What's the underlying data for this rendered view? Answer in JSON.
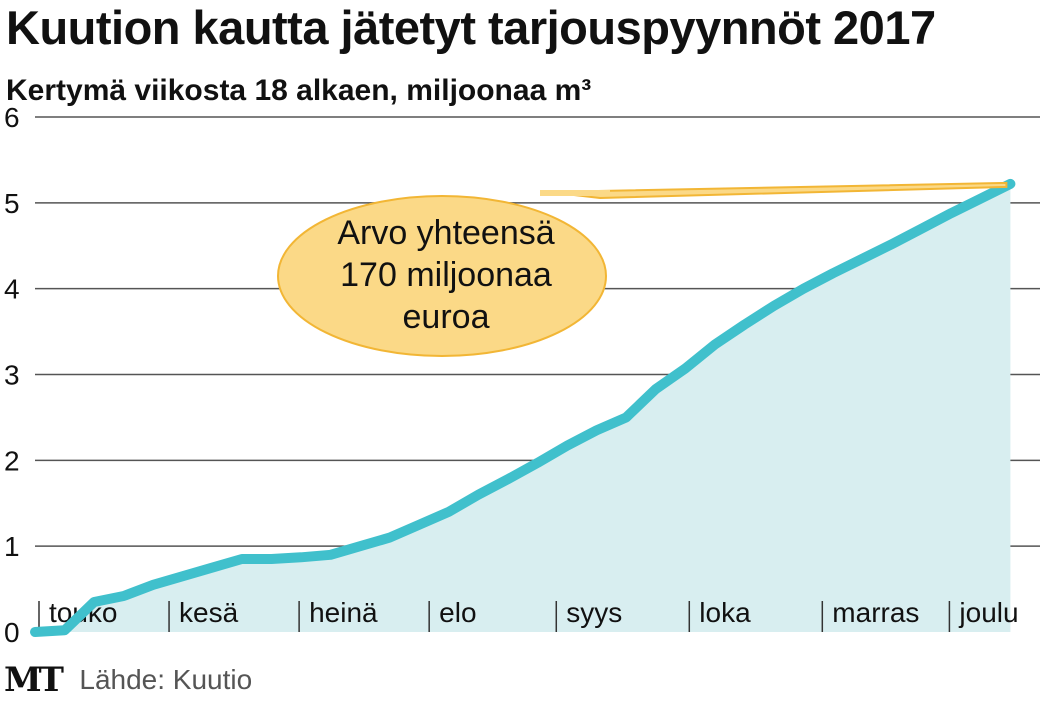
{
  "header": {
    "title": "Kuution kautta jätetyt tarjouspyynnöt 2017",
    "subtitle": "Kertymä viikosta 18 alkaen, miljoonaa m³"
  },
  "annotation": {
    "lines": [
      "Arvo yhteensä",
      "170 miljoonaa",
      "euroa"
    ]
  },
  "footer": {
    "logo": "MT",
    "source": "Lähde: Kuutio"
  },
  "colors": {
    "line": "#40c0cc",
    "area": "#d8eef0",
    "callout_fill": "#fbd987",
    "callout_stroke": "#f2b635",
    "grid": "#555555"
  },
  "chart_data": {
    "type": "area",
    "title": "Kuution kautta jätetyt tarjouspyynnöt 2017",
    "subtitle": "Kertymä viikosta 18 alkaen, miljoonaa m³",
    "xlabel": "",
    "ylabel": "",
    "ylim": [
      0,
      6
    ],
    "yticks": [
      0,
      1,
      2,
      3,
      4,
      5,
      6
    ],
    "xlim": [
      18,
      52
    ],
    "month_labels": [
      "touko",
      "kesä",
      "heinä",
      "elo",
      "syys",
      "loka",
      "marras",
      "joulu"
    ],
    "month_start_weeks": [
      18,
      22.4,
      26.8,
      31.2,
      35.5,
      40,
      44.5,
      48.8
    ],
    "grid": true,
    "series": [
      {
        "x": [
          18,
          19,
          20,
          21,
          22,
          23,
          24,
          25,
          26,
          27,
          28,
          29,
          30,
          31,
          32,
          33,
          34,
          35,
          36,
          37,
          38,
          39,
          40,
          41,
          42,
          43,
          44,
          45,
          46,
          47,
          48,
          49,
          50,
          51
        ],
        "values": [
          0.0,
          0.02,
          0.35,
          0.42,
          0.55,
          0.65,
          0.75,
          0.85,
          0.85,
          0.87,
          0.9,
          1.0,
          1.1,
          1.25,
          1.4,
          1.6,
          1.78,
          1.97,
          2.17,
          2.35,
          2.5,
          2.83,
          3.07,
          3.35,
          3.58,
          3.8,
          4.0,
          4.18,
          4.35,
          4.52,
          4.7,
          4.88,
          5.05,
          5.22
        ]
      }
    ]
  }
}
